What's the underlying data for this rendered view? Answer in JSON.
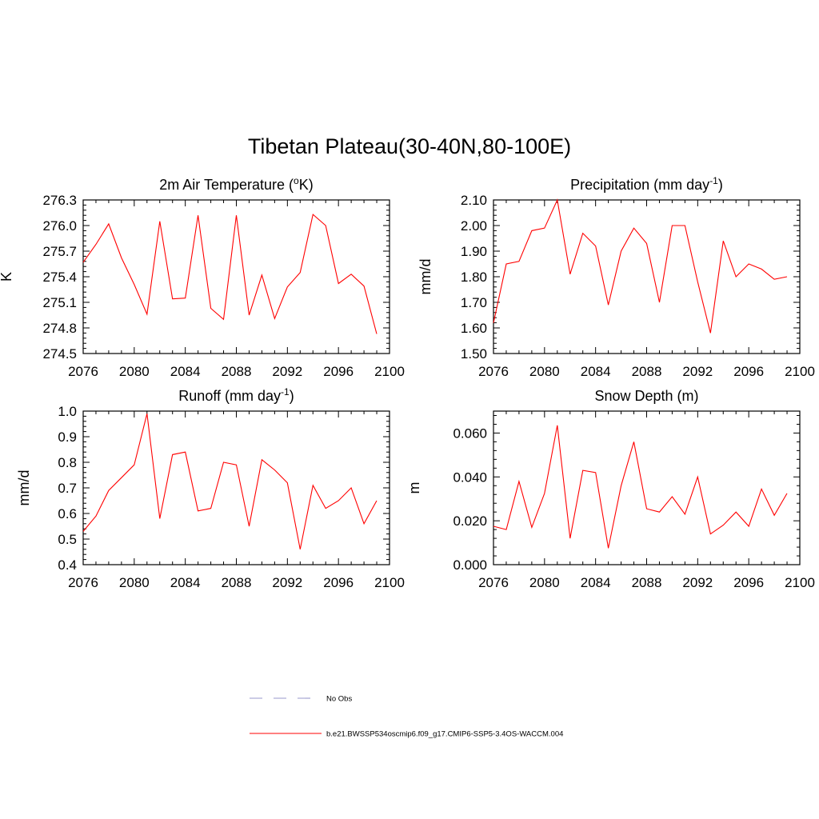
{
  "title": "Tibetan Plateau(30-40N,80-100E)",
  "chart_data": [
    {
      "type": "line",
      "title": "2m Air Temperature (",
      "title_sup": "o",
      "title_tail": "K)",
      "ylabel": "K",
      "xlim": [
        2076,
        2100
      ],
      "ylim": [
        274.5,
        276.3
      ],
      "xticks": [
        2076,
        2080,
        2084,
        2088,
        2092,
        2096,
        2100
      ],
      "yticks": [
        "274.5",
        "274.8",
        "275.1",
        "275.4",
        "275.7",
        "276.0",
        "276.3"
      ],
      "series": [
        {
          "color": "#ff0000",
          "x": [
            2076,
            2077,
            2078,
            2079,
            2080,
            2081,
            2082,
            2083,
            2084,
            2085,
            2086,
            2087,
            2088,
            2089,
            2090,
            2091,
            2092,
            2093,
            2094,
            2095,
            2096,
            2097,
            2098,
            2099
          ],
          "y": [
            275.57,
            275.78,
            276.02,
            275.62,
            275.31,
            274.96,
            276.05,
            275.14,
            275.15,
            276.12,
            275.03,
            274.9,
            276.12,
            274.95,
            275.42,
            274.91,
            275.28,
            275.45,
            276.13,
            276.0,
            275.32,
            275.43,
            275.29,
            274.73
          ]
        }
      ]
    },
    {
      "type": "line",
      "title": "Precipitation (mm day",
      "title_sup": "-1",
      "title_tail": ")",
      "ylabel": "mm/d",
      "xlim": [
        2076,
        2100
      ],
      "ylim": [
        1.5,
        2.1
      ],
      "xticks": [
        2076,
        2080,
        2084,
        2088,
        2092,
        2096,
        2100
      ],
      "yticks": [
        "1.50",
        "1.60",
        "1.70",
        "1.80",
        "1.90",
        "2.00",
        "2.10"
      ],
      "series": [
        {
          "color": "#ff0000",
          "x": [
            2076,
            2077,
            2078,
            2079,
            2080,
            2081,
            2082,
            2083,
            2084,
            2085,
            2086,
            2087,
            2088,
            2089,
            2090,
            2091,
            2092,
            2093,
            2094,
            2095,
            2096,
            2097,
            2098,
            2099
          ],
          "y": [
            1.62,
            1.85,
            1.86,
            1.98,
            1.99,
            2.1,
            1.81,
            1.97,
            1.92,
            1.69,
            1.9,
            1.99,
            1.93,
            1.7,
            2.0,
            2.0,
            1.78,
            1.58,
            1.94,
            1.8,
            1.85,
            1.83,
            1.79,
            1.8
          ]
        }
      ]
    },
    {
      "type": "line",
      "title": "Runoff (mm day",
      "title_sup": "-1",
      "title_tail": ")",
      "ylabel": "mm/d",
      "xlim": [
        2076,
        2100
      ],
      "ylim": [
        0.4,
        1.0
      ],
      "xticks": [
        2076,
        2080,
        2084,
        2088,
        2092,
        2096,
        2100
      ],
      "yticks": [
        "0.4",
        "0.5",
        "0.6",
        "0.7",
        "0.8",
        "0.9",
        "1.0"
      ],
      "series": [
        {
          "color": "#ff0000",
          "x": [
            2076,
            2077,
            2078,
            2079,
            2080,
            2081,
            2082,
            2083,
            2084,
            2085,
            2086,
            2087,
            2088,
            2089,
            2090,
            2091,
            2092,
            2093,
            2094,
            2095,
            2096,
            2097,
            2098,
            2099
          ],
          "y": [
            0.53,
            0.59,
            0.69,
            0.74,
            0.79,
            0.99,
            0.58,
            0.83,
            0.84,
            0.61,
            0.62,
            0.8,
            0.79,
            0.55,
            0.81,
            0.77,
            0.72,
            0.46,
            0.71,
            0.62,
            0.65,
            0.7,
            0.56,
            0.65
          ]
        }
      ]
    },
    {
      "type": "line",
      "title": "Snow Depth (m)",
      "title_sup": "",
      "title_tail": "",
      "ylabel": "m",
      "xlim": [
        2076,
        2100
      ],
      "ylim": [
        0.0,
        0.07
      ],
      "xticks": [
        2076,
        2080,
        2084,
        2088,
        2092,
        2096,
        2100
      ],
      "yticks": [
        "0.000",
        "0.020",
        "0.040",
        "0.060"
      ],
      "series": [
        {
          "color": "#ff0000",
          "x": [
            2076,
            2077,
            2078,
            2079,
            2080,
            2081,
            2082,
            2083,
            2084,
            2085,
            2086,
            2087,
            2088,
            2089,
            2090,
            2091,
            2092,
            2093,
            2094,
            2095,
            2096,
            2097,
            2098,
            2099
          ],
          "y": [
            0.0175,
            0.016,
            0.038,
            0.017,
            0.0325,
            0.0635,
            0.012,
            0.043,
            0.042,
            0.0075,
            0.036,
            0.056,
            0.0255,
            0.024,
            0.031,
            0.023,
            0.04,
            0.014,
            0.018,
            0.024,
            0.0175,
            0.0345,
            0.0225,
            0.0325
          ]
        }
      ]
    }
  ],
  "legend": [
    {
      "label": "No Obs",
      "color": "#9999cc",
      "dash": true
    },
    {
      "label": "b.e21.BWSSP534oscmip6.f09_g17.CMIP6-SSP5-3.4OS-WACCM.004",
      "color": "#ff0000",
      "dash": false
    }
  ]
}
